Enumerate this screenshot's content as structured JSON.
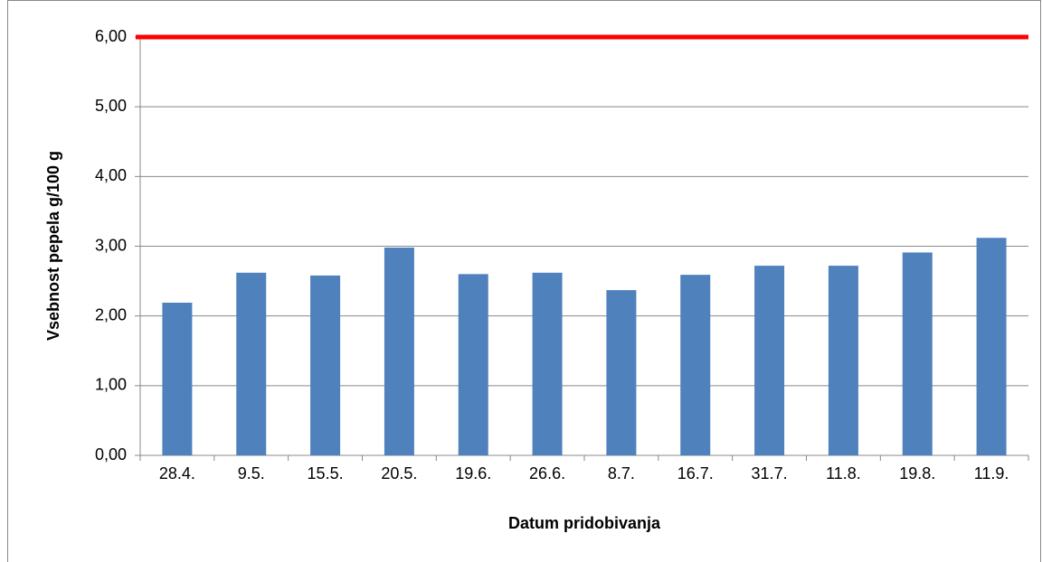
{
  "chart_data": {
    "type": "bar",
    "x_label": "Datum pridobivanja",
    "y_label": "Vsebnost pepela g/100 g",
    "categories": [
      "28.4.",
      "9.5.",
      "15.5.",
      "20.5.",
      "19.6.",
      "26.6.",
      "8.7.",
      "16.7.",
      "31.7.",
      "11.8.",
      "19.8.",
      "11.9."
    ],
    "values": [
      2.19,
      2.62,
      2.58,
      2.98,
      2.6,
      2.62,
      2.37,
      2.59,
      2.72,
      2.72,
      2.91,
      3.12
    ],
    "color": "#4f81bd",
    "reference_line": {
      "value": 6,
      "color": "#ff0000"
    },
    "ylim": [
      0,
      6
    ],
    "yticks": [
      {
        "value": 0,
        "label": "0,00"
      },
      {
        "value": 1,
        "label": "1,00"
      },
      {
        "value": 2,
        "label": "2,00"
      },
      {
        "value": 3,
        "label": "3,00"
      },
      {
        "value": 4,
        "label": "4,00"
      },
      {
        "value": 5,
        "label": "5,00"
      },
      {
        "value": 6,
        "label": "6,00"
      }
    ],
    "grid": true
  }
}
